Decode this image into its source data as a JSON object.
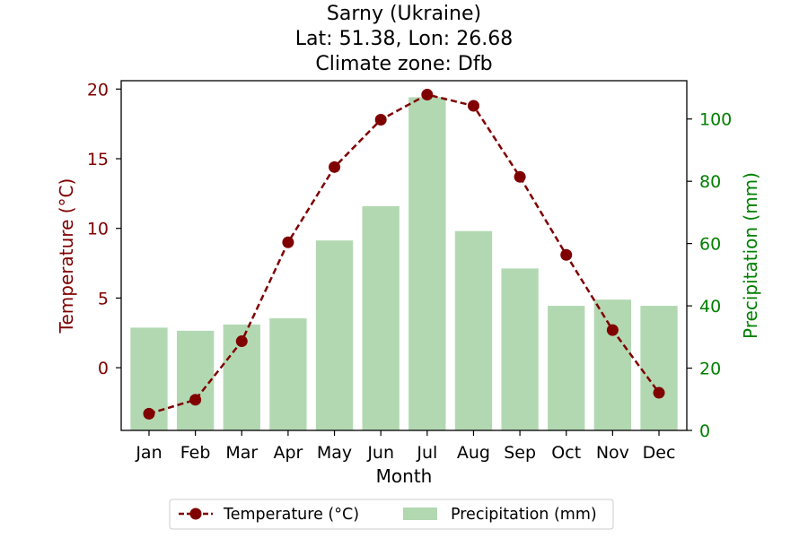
{
  "chart_data": {
    "type": "bar+line",
    "title_lines": [
      "Sarny (Ukraine)",
      "Lat: 51.38, Lon: 26.68",
      "Climate zone: Dfb"
    ],
    "xlabel": "Month",
    "categories": [
      "Jan",
      "Feb",
      "Mar",
      "Apr",
      "May",
      "Jun",
      "Jul",
      "Aug",
      "Sep",
      "Oct",
      "Nov",
      "Dec"
    ],
    "temperature": {
      "name": "Temperature (°C)",
      "axis_label": "Temperature (°C)",
      "color": "#800000",
      "values": [
        -3.3,
        -2.3,
        1.9,
        9.0,
        14.4,
        17.8,
        19.6,
        18.8,
        13.7,
        8.1,
        2.7,
        -1.8
      ],
      "ylim": [
        -4.5,
        20.6
      ],
      "ticks": [
        0,
        5,
        10,
        15,
        20
      ]
    },
    "precipitation": {
      "name": "Precipitation (mm)",
      "axis_label": "Precipitation (mm)",
      "color": "#b2d8b2",
      "axis_color": "#008000",
      "values": [
        33,
        32,
        34,
        36,
        61,
        72,
        107,
        64,
        52,
        40,
        42,
        40
      ],
      "ylim": [
        0,
        112.3
      ],
      "ticks": [
        0,
        20,
        40,
        60,
        80,
        100
      ]
    },
    "legend": {
      "placement": "bottom-center"
    }
  }
}
